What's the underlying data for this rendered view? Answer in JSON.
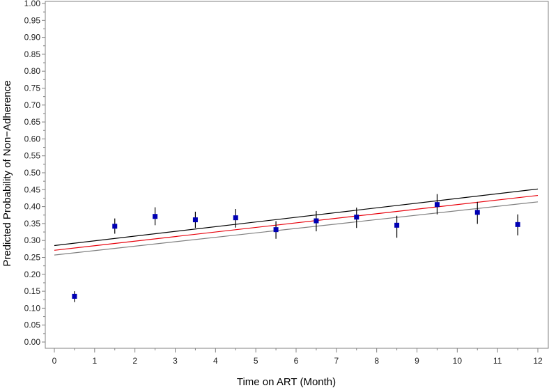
{
  "chart_data": {
    "type": "scatter",
    "xlabel": "Time on ART (Month)",
    "ylabel": "Predicted Probability of Non−Adherence",
    "xlim": [
      0,
      12
    ],
    "ylim": [
      0,
      1
    ],
    "x_ticks": [
      "0",
      "1",
      "2",
      "3",
      "4",
      "5",
      "6",
      "7",
      "8",
      "9",
      "10",
      "11",
      "12"
    ],
    "y_ticks": [
      "0.00",
      "0.05",
      "0.10",
      "0.15",
      "0.20",
      "0.25",
      "0.30",
      "0.35",
      "0.40",
      "0.45",
      "0.50",
      "0.55",
      "0.60",
      "0.65",
      "0.70",
      "0.75",
      "0.80",
      "0.85",
      "0.90",
      "0.95",
      "1.00"
    ],
    "grid": false,
    "legend": "none",
    "points": [
      {
        "x": 0.5,
        "y": 0.135,
        "lo": 0.118,
        "hi": 0.15
      },
      {
        "x": 1.5,
        "y": 0.342,
        "lo": 0.32,
        "hi": 0.365
      },
      {
        "x": 2.5,
        "y": 0.371,
        "lo": 0.345,
        "hi": 0.398
      },
      {
        "x": 3.5,
        "y": 0.361,
        "lo": 0.337,
        "hi": 0.385
      },
      {
        "x": 4.5,
        "y": 0.367,
        "lo": 0.338,
        "hi": 0.393
      },
      {
        "x": 5.5,
        "y": 0.332,
        "lo": 0.305,
        "hi": 0.357
      },
      {
        "x": 6.5,
        "y": 0.358,
        "lo": 0.327,
        "hi": 0.387
      },
      {
        "x": 7.5,
        "y": 0.369,
        "lo": 0.337,
        "hi": 0.397
      },
      {
        "x": 8.5,
        "y": 0.345,
        "lo": 0.308,
        "hi": 0.373
      },
      {
        "x": 9.5,
        "y": 0.406,
        "lo": 0.377,
        "hi": 0.437
      },
      {
        "x": 10.5,
        "y": 0.383,
        "lo": 0.349,
        "hi": 0.414
      },
      {
        "x": 11.5,
        "y": 0.347,
        "lo": 0.315,
        "hi": 0.377
      }
    ],
    "lines": [
      {
        "role": "upper",
        "color": "#000000",
        "x": [
          0,
          12
        ],
        "y": [
          0.285,
          0.452
        ]
      },
      {
        "role": "fit",
        "color": "#e8000b",
        "x": [
          0,
          12
        ],
        "y": [
          0.271,
          0.433
        ]
      },
      {
        "role": "lower",
        "color": "#808080",
        "x": [
          0,
          12
        ],
        "y": [
          0.257,
          0.414
        ]
      }
    ],
    "marker_color": "#0000b4"
  }
}
